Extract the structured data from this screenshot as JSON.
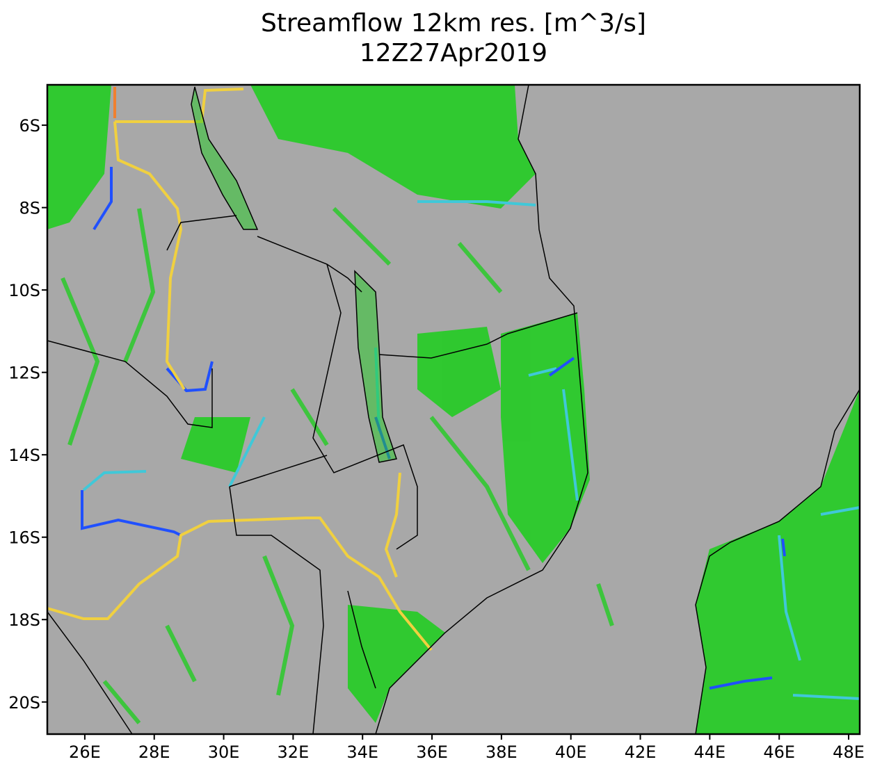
{
  "chart_data": {
    "type": "map",
    "title": "Streamflow 12km res. [m^3/s]",
    "subtitle": "12Z27Apr2019",
    "xlim": [
      24.92,
      48.32
    ],
    "ylim": [
      -20.78,
      -5.02
    ],
    "xticks": [
      {
        "value": 26,
        "label": "26E"
      },
      {
        "value": 28,
        "label": "28E"
      },
      {
        "value": 30,
        "label": "30E"
      },
      {
        "value": 32,
        "label": "32E"
      },
      {
        "value": 34,
        "label": "34E"
      },
      {
        "value": 36,
        "label": "36E"
      },
      {
        "value": 38,
        "label": "38E"
      },
      {
        "value": 40,
        "label": "40E"
      },
      {
        "value": 42,
        "label": "42E"
      },
      {
        "value": 44,
        "label": "44E"
      },
      {
        "value": 46,
        "label": "46E"
      },
      {
        "value": 48,
        "label": "48E"
      }
    ],
    "yticks": [
      {
        "value": -6,
        "label": "6S"
      },
      {
        "value": -8,
        "label": "8S"
      },
      {
        "value": -10,
        "label": "10S"
      },
      {
        "value": -12,
        "label": "12S"
      },
      {
        "value": -14,
        "label": "14S"
      },
      {
        "value": -16,
        "label": "16S"
      },
      {
        "value": -18,
        "label": "18S"
      },
      {
        "value": -20,
        "label": "20S"
      }
    ]
  }
}
